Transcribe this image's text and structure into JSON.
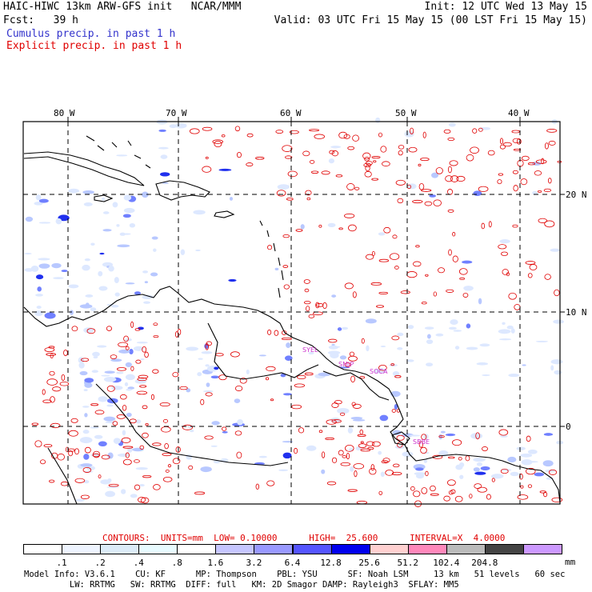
{
  "header": {
    "line1_left": "HAIC-HIWC 13km ARW-GFS init   NCAR/MMM",
    "line1_right": "Init: 12 UTC Wed 13 May 15",
    "line2_left": "Fcst:   39 h",
    "line2_right": "Valid: 03 UTC Fri 15 May 15 (00 LST Fri 15 May 15)",
    "line3": "Cumulus precip. in past 1 h",
    "line4": "Explicit precip. in past 1 h",
    "line3_color": "#3333cc",
    "line4_color": "#e00000"
  },
  "map": {
    "lon_labels": [
      "80 W",
      "70 W",
      "60 W",
      "50 W",
      "40 W"
    ],
    "lat_labels": [
      "20 N",
      "10 N",
      "0"
    ],
    "station_labels": [
      "SYEL",
      "SMJP",
      "SOCA",
      "SBBE"
    ],
    "station_color": "#cc33cc",
    "coast_color": "#000000",
    "explicit_color": "#e00000",
    "cumulus_colors": [
      "#dde8ff",
      "#b8c8ff",
      "#7080ff",
      "#2030ee"
    ]
  },
  "contours": {
    "text": "CONTOURS:  UNITS=mm  LOW= 0.10000      HIGH=  25.600      INTERVAL=X  4.0000",
    "color": "#e00000"
  },
  "legend": {
    "unit": "mm",
    "colors": [
      "#ffffff",
      "#eef4ff",
      "#dcecf8",
      "#e8fbff",
      "#ffffff",
      "#c6c6ff",
      "#9999ff",
      "#5555ff",
      "#0000ee",
      "#ffd0d0",
      "#ff88bb",
      "#bbbbbb",
      "#444444",
      "#cc99ff"
    ],
    "ticks": [
      ".1",
      ".2",
      ".4",
      ".8",
      "1.6",
      "3.2",
      "6.4",
      "12.8",
      "25.6",
      "51.2",
      "102.4",
      "204.8"
    ]
  },
  "footer": {
    "line1": "Model Info: V3.6.1    CU: KF      MP: Thompson    PBL: YSU      SF: Noah LSM     13 km   51 levels   60 sec",
    "line2": "         LW: RRTMG   SW: RRTMG  DIFF: full   KM: 2D Smagor DAMP: Rayleigh3  SFLAY: MM5"
  }
}
